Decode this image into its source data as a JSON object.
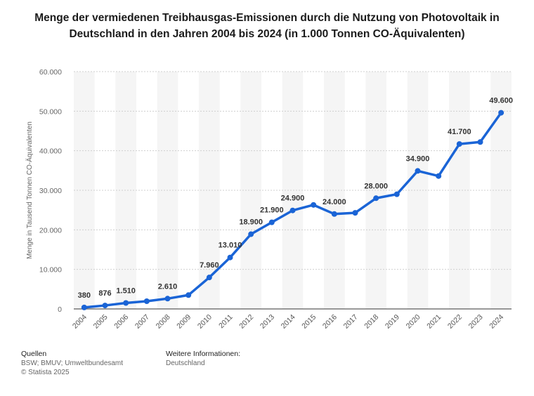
{
  "chart_data": {
    "type": "line",
    "title": "Menge der vermiedenen Treibhausgas-Emissionen durch die Nutzung von Photovoltaik in Deutschland in den Jahren 2004 bis 2024 (in 1.000 Tonnen CO-Äquivalenten)",
    "xlabel": "",
    "ylabel": "Menge in Tausend Tonnen CO-Äquivalenten",
    "ylim": [
      0,
      60000
    ],
    "yticks": [
      0,
      10000,
      20000,
      30000,
      40000,
      50000,
      60000
    ],
    "ytick_labels": [
      "0",
      "10.000",
      "20.000",
      "30.000",
      "40.000",
      "50.000",
      "60.000"
    ],
    "grid": true,
    "categories": [
      "2004",
      "2005",
      "2006",
      "2007",
      "2008",
      "2009",
      "2010",
      "2011",
      "2012",
      "2013",
      "2014",
      "2015",
      "2016",
      "2017",
      "2018",
      "2019",
      "2020",
      "2021",
      "2022",
      "2023",
      "2024"
    ],
    "values": [
      380,
      876,
      1510,
      1950,
      2610,
      3500,
      7960,
      13010,
      18900,
      21900,
      24900,
      26300,
      24000,
      24300,
      28000,
      29000,
      34900,
      33600,
      41700,
      42200,
      49600
    ],
    "data_labels": [
      "380",
      "876",
      "1.510",
      "",
      "2.610",
      "",
      "7.960",
      "13.010",
      "18.900",
      "21.900",
      "24.900",
      "",
      "24.000",
      "",
      "28.000",
      "",
      "34.900",
      "",
      "41.700",
      "",
      "49.600"
    ],
    "color": "#1a64d6"
  },
  "footer": {
    "sources_heading": "Quellen",
    "sources_text": "BSW; BMUV; Umweltbundesamt",
    "copyright": "© Statista 2025",
    "info_heading": "Weitere Informationen:",
    "info_text": "Deutschland"
  }
}
